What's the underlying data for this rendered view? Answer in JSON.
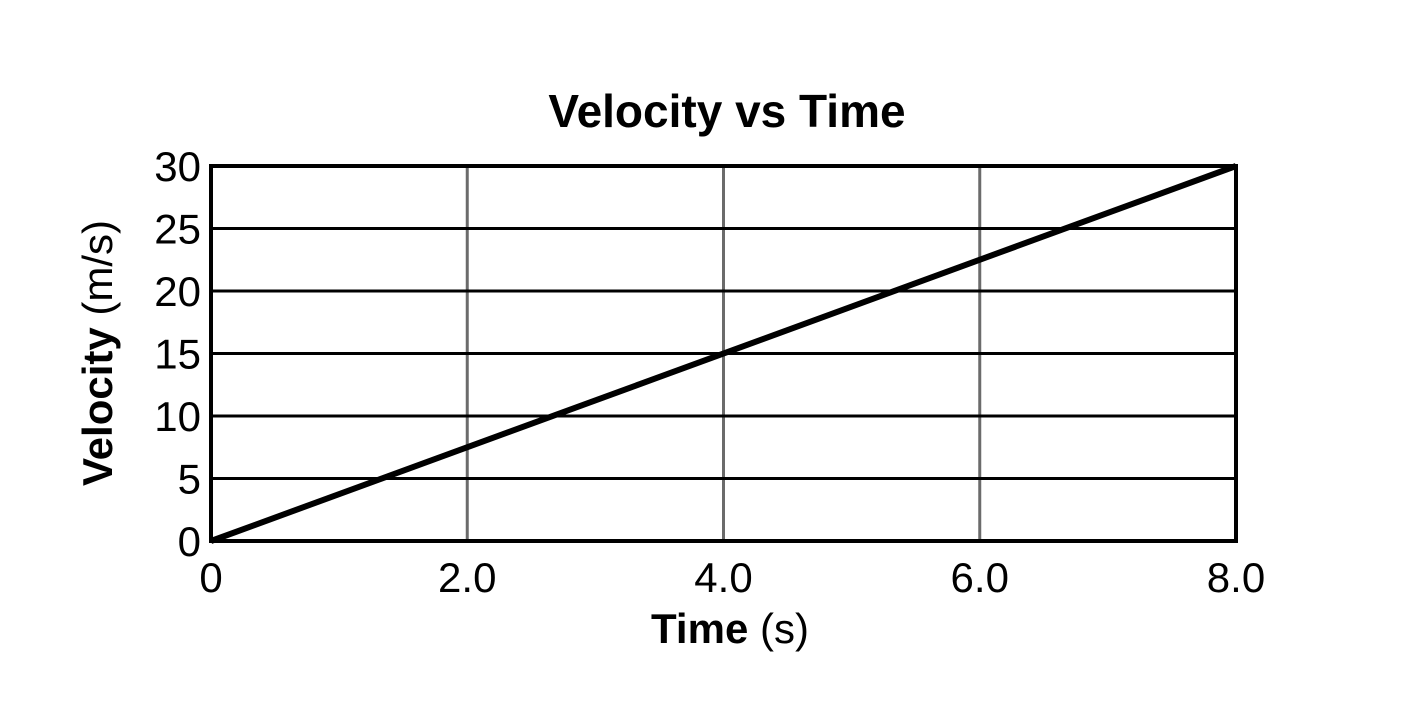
{
  "chart_data": {
    "type": "line",
    "title": "Velocity vs Time",
    "xlabel_bold": "Time",
    "xlabel_unit": "(s)",
    "ylabel_bold": "Velocity",
    "ylabel_unit": "(m/s)",
    "xlim": [
      0,
      8
    ],
    "ylim": [
      0,
      30
    ],
    "xticks": [
      0,
      2,
      4,
      6,
      8
    ],
    "xtick_labels": [
      "0",
      "2.0",
      "4.0",
      "6.0",
      "8.0"
    ],
    "yticks": [
      0,
      5,
      10,
      15,
      20,
      25,
      30
    ],
    "ytick_labels": [
      "0",
      "5",
      "10",
      "15",
      "20",
      "25",
      "30"
    ],
    "grid": true,
    "series": [
      {
        "name": "velocity",
        "x": [
          0,
          8
        ],
        "y": [
          0,
          30
        ],
        "color": "#000000"
      }
    ]
  }
}
